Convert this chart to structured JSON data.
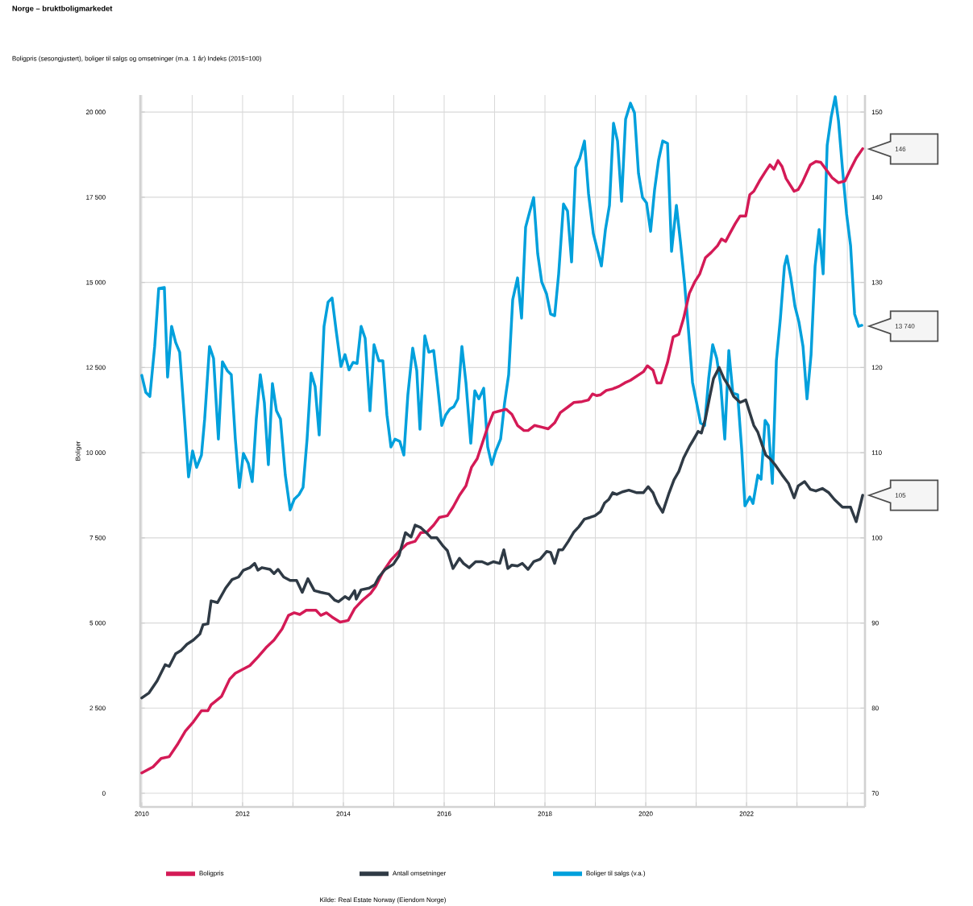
{
  "chart_data": {
    "type": "line",
    "title": "Norge – bruktboligmarkedet",
    "subtitle": "Boligpris (sesongjustert), boliger til salgs og omsetninger (m.a. 1 år) Indeks (2015=100)",
    "ylabel": "Boliger",
    "annotations": [
      "146",
      "13 740",
      "105",
      "Kilde: Real Estate Norway (Eiendom Norge)"
    ],
    "xlim": [
      2009.97,
      2024.35
    ],
    "xticks": [
      2010,
      {
        "value": 2011,
        "label": null
      },
      2012,
      {
        "value": 2013,
        "label": null
      },
      2014,
      {
        "value": 2015,
        "label": null
      },
      2016,
      {
        "value": 2017,
        "label": null
      },
      2018,
      {
        "value": 2019,
        "label": null
      },
      2020,
      {
        "value": 2021,
        "label": null
      },
      2022,
      {
        "value": 2023,
        "label": null
      },
      {
        "value": 2024,
        "label": null
      }
    ],
    "ylim": [
      -400,
      20500
    ],
    "yticks": [
      0,
      {
        "value": 2500,
        "label": "2 500"
      },
      {
        "value": 5000,
        "label": "5 000"
      },
      {
        "value": 7500,
        "label": "7 500"
      },
      {
        "value": 10000,
        "label": "10 000"
      },
      {
        "value": 12500,
        "label": "12 500"
      },
      {
        "value": 15000,
        "label": "15 000"
      },
      {
        "value": 17500,
        "label": "17 500"
      },
      {
        "value": 20000,
        "label": "20 000"
      }
    ],
    "y2lim": [
      68.4,
      152
    ],
    "y2ticks": [
      70,
      80,
      90,
      100,
      110,
      120,
      130,
      140,
      150
    ],
    "grid": true,
    "legend": "bottom",
    "series": [
      {
        "name": "Boligpris",
        "color": "#d41a56",
        "axis": "y2",
        "x": [
          2010.0,
          2010.224,
          2010.384,
          2010.544,
          2010.704,
          2010.864,
          2011.024,
          2011.184,
          2011.312,
          2011.376,
          2011.584,
          2011.744,
          2011.856,
          2011.984,
          2012.144,
          2012.304,
          2012.464,
          2012.624,
          2012.784,
          2012.912,
          2013.024,
          2013.136,
          2013.264,
          2013.456,
          2013.552,
          2013.664,
          2013.776,
          2013.936,
          2014.096,
          2014.224,
          2014.384,
          2014.544,
          2014.64,
          2014.784,
          2014.944,
          2015.104,
          2015.264,
          2015.424,
          2015.536,
          2015.664,
          2015.792,
          2015.904,
          2016.064,
          2016.176,
          2016.304,
          2016.432,
          2016.544,
          2016.656,
          2016.784,
          2016.864,
          2016.976,
          2017.104,
          2017.232,
          2017.344,
          2017.456,
          2017.584,
          2017.664,
          2017.792,
          2017.936,
          2018.064,
          2018.192,
          2018.304,
          2018.464,
          2018.576,
          2018.736,
          2018.864,
          2018.944,
          2019.024,
          2019.104,
          2019.216,
          2019.344,
          2019.472,
          2019.584,
          2019.696,
          2019.824,
          2019.952,
          2020.032,
          2020.144,
          2020.224,
          2020.304,
          2020.432,
          2020.544,
          2020.656,
          2020.752,
          2020.864,
          2020.976,
          2021.072,
          2021.184,
          2021.296,
          2021.424,
          2021.504,
          2021.584,
          2021.664,
          2021.776,
          2021.872,
          2021.984,
          2022.064,
          2022.144,
          2022.256,
          2022.384,
          2022.464,
          2022.544,
          2022.624,
          2022.704,
          2022.784,
          2022.944,
          2023.024,
          2023.104,
          2023.264,
          2023.376,
          2023.472,
          2023.584,
          2023.696,
          2023.824,
          2023.952,
          2024.064,
          2024.176,
          2024.304
        ],
        "values": [
          72.4,
          73.1,
          74.1,
          74.3,
          75.7,
          77.3,
          78.4,
          79.7,
          79.7,
          80.4,
          81.4,
          83.4,
          84.1,
          84.5,
          85.0,
          86.0,
          87.1,
          88.0,
          89.3,
          90.9,
          91.2,
          91.0,
          91.5,
          91.5,
          90.9,
          91.2,
          90.7,
          90.1,
          90.3,
          91.7,
          92.7,
          93.5,
          94.3,
          96.0,
          97.4,
          98.4,
          99.3,
          99.6,
          100.6,
          100.7,
          101.5,
          102.4,
          102.6,
          103.6,
          105.0,
          106.1,
          108.3,
          109.3,
          111.6,
          113.0,
          114.7,
          114.9,
          115.1,
          114.5,
          113.2,
          112.6,
          112.6,
          113.2,
          113.0,
          112.8,
          113.5,
          114.7,
          115.4,
          115.9,
          116.0,
          116.2,
          116.9,
          116.7,
          116.8,
          117.3,
          117.5,
          117.8,
          118.2,
          118.5,
          119.0,
          119.5,
          120.2,
          119.7,
          118.2,
          118.2,
          120.6,
          123.6,
          123.9,
          125.8,
          128.7,
          130.1,
          131.0,
          132.9,
          133.5,
          134.3,
          135.1,
          134.8,
          135.7,
          136.9,
          137.8,
          137.8,
          140.3,
          140.7,
          141.9,
          143.1,
          143.8,
          143.3,
          144.3,
          143.6,
          142.2,
          140.7,
          140.9,
          141.7,
          143.8,
          144.2,
          144.1,
          143.2,
          142.3,
          141.7,
          141.9,
          143.3,
          144.6,
          145.7
        ]
      },
      {
        "name": "Antall omsetninger",
        "color": "#2f3a45",
        "axis": "y2",
        "x": [
          2010.0,
          2010.144,
          2010.304,
          2010.464,
          2010.544,
          2010.672,
          2010.784,
          2010.896,
          2011.024,
          2011.152,
          2011.216,
          2011.312,
          2011.376,
          2011.504,
          2011.664,
          2011.792,
          2011.92,
          2012.016,
          2012.144,
          2012.24,
          2012.304,
          2012.384,
          2012.544,
          2012.624,
          2012.704,
          2012.816,
          2012.944,
          2013.072,
          2013.184,
          2013.296,
          2013.424,
          2013.552,
          2013.712,
          2013.824,
          2013.904,
          2014.032,
          2014.112,
          2014.224,
          2014.256,
          2014.352,
          2014.512,
          2014.624,
          2014.704,
          2014.832,
          2014.992,
          2015.104,
          2015.232,
          2015.344,
          2015.424,
          2015.536,
          2015.664,
          2015.744,
          2015.856,
          2015.984,
          2016.064,
          2016.176,
          2016.304,
          2016.384,
          2016.496,
          2016.624,
          2016.752,
          2016.864,
          2016.976,
          2017.104,
          2017.184,
          2017.264,
          2017.344,
          2017.456,
          2017.552,
          2017.664,
          2017.776,
          2017.904,
          2018.032,
          2018.112,
          2018.192,
          2018.272,
          2018.352,
          2018.464,
          2018.576,
          2018.672,
          2018.784,
          2018.896,
          2018.992,
          2019.104,
          2019.184,
          2019.264,
          2019.344,
          2019.424,
          2019.536,
          2019.664,
          2019.824,
          2019.952,
          2020.048,
          2020.144,
          2020.224,
          2020.336,
          2020.464,
          2020.56,
          2020.656,
          2020.752,
          2020.864,
          2020.944,
          2021.04,
          2021.104,
          2021.184,
          2021.264,
          2021.344,
          2021.456,
          2021.552,
          2021.648,
          2021.744,
          2021.872,
          2021.984,
          2022.064,
          2022.144,
          2022.224,
          2022.304,
          2022.384,
          2022.464,
          2022.576,
          2022.704,
          2022.832,
          2022.944,
          2023.024,
          2023.152,
          2023.264,
          2023.376,
          2023.504,
          2023.632,
          2023.744,
          2023.904,
          2024.064,
          2024.176,
          2024.304
        ],
        "values": [
          81.2,
          81.8,
          83.2,
          85.1,
          84.9,
          86.4,
          86.8,
          87.5,
          88.0,
          88.7,
          89.8,
          89.9,
          92.6,
          92.4,
          94.1,
          95.1,
          95.4,
          96.2,
          96.5,
          97.0,
          96.2,
          96.5,
          96.3,
          95.8,
          96.3,
          95.4,
          95.0,
          95.0,
          93.6,
          95.2,
          93.8,
          93.6,
          93.4,
          92.7,
          92.5,
          93.1,
          92.8,
          93.8,
          92.8,
          93.9,
          94.1,
          94.5,
          95.4,
          96.3,
          96.9,
          97.9,
          100.6,
          100.1,
          101.5,
          101.2,
          100.5,
          100.0,
          100.0,
          99.0,
          98.5,
          96.4,
          97.6,
          97.0,
          96.5,
          97.2,
          97.2,
          96.9,
          97.2,
          97.0,
          98.6,
          96.4,
          96.8,
          96.7,
          97.0,
          96.3,
          97.2,
          97.5,
          98.4,
          98.3,
          97.0,
          98.6,
          98.6,
          99.6,
          100.7,
          101.3,
          102.2,
          102.4,
          102.6,
          103.1,
          104.1,
          104.5,
          105.3,
          105.1,
          105.4,
          105.6,
          105.3,
          105.3,
          106.0,
          105.3,
          104.1,
          103.0,
          105.3,
          106.8,
          107.8,
          109.4,
          110.7,
          111.5,
          112.5,
          112.3,
          114.0,
          116.4,
          118.7,
          120.0,
          118.7,
          117.8,
          116.6,
          115.9,
          116.2,
          114.7,
          113.2,
          112.4,
          111.0,
          109.7,
          109.3,
          108.5,
          107.4,
          106.4,
          104.7,
          106.1,
          106.6,
          105.7,
          105.5,
          105.8,
          105.3,
          104.5,
          103.6,
          103.6,
          101.9,
          105.0
        ]
      },
      {
        "name": "Boliger til salgs (v.a.)",
        "color": "#00a0dc",
        "x": [
          2010.0,
          2010.08,
          2010.16,
          2010.256,
          2010.336,
          2010.448,
          2010.512,
          2010.592,
          2010.672,
          2010.752,
          2010.848,
          2010.928,
          2011.008,
          2011.088,
          2011.184,
          2011.248,
          2011.344,
          2011.424,
          2011.52,
          2011.6,
          2011.696,
          2011.776,
          2011.856,
          2011.936,
          2012.016,
          2012.112,
          2012.192,
          2012.272,
          2012.352,
          2012.432,
          2012.512,
          2012.592,
          2012.672,
          2012.752,
          2012.848,
          2012.944,
          2013.024,
          2013.12,
          2013.2,
          2013.28,
          2013.36,
          2013.44,
          2013.52,
          2013.616,
          2013.696,
          2013.776,
          2013.856,
          2013.952,
          2014.032,
          2014.112,
          2014.192,
          2014.272,
          2014.352,
          2014.432,
          2014.528,
          2014.608,
          2014.704,
          2014.784,
          2014.864,
          2014.944,
          2015.024,
          2015.12,
          2015.2,
          2015.28,
          2015.376,
          2015.456,
          2015.52,
          2015.616,
          2015.696,
          2015.792,
          2015.872,
          2015.952,
          2016.032,
          2016.112,
          2016.192,
          2016.272,
          2016.352,
          2016.432,
          2016.528,
          2016.608,
          2016.688,
          2016.784,
          2016.864,
          2016.944,
          2017.024,
          2017.12,
          2017.2,
          2017.28,
          2017.36,
          2017.456,
          2017.536,
          2017.616,
          2017.696,
          2017.776,
          2017.856,
          2017.936,
          2018.032,
          2018.112,
          2018.192,
          2018.272,
          2018.368,
          2018.448,
          2018.528,
          2018.608,
          2018.688,
          2018.784,
          2018.864,
          2018.96,
          2019.04,
          2019.12,
          2019.2,
          2019.28,
          2019.36,
          2019.44,
          2019.52,
          2019.6,
          2019.696,
          2019.776,
          2019.856,
          2019.936,
          2020.016,
          2020.096,
          2020.176,
          2020.256,
          2020.336,
          2020.432,
          2020.512,
          2020.608,
          2020.688,
          2020.768,
          2020.848,
          2020.928,
          2021.008,
          2021.088,
          2021.168,
          2021.248,
          2021.328,
          2021.408,
          2021.488,
          2021.568,
          2021.648,
          2021.728,
          2021.824,
          2021.904,
          2021.968,
          2022.064,
          2022.128,
          2022.224,
          2022.288,
          2022.368,
          2022.432,
          2022.512,
          2022.592,
          2022.672,
          2022.752,
          2022.8,
          2022.88,
          2022.96,
          2023.04,
          2023.12,
          2023.2,
          2023.28,
          2023.36,
          2023.44,
          2023.52,
          2023.6,
          2023.68,
          2023.76,
          2023.824,
          2023.904,
          2023.984,
          2024.064,
          2024.144,
          2024.224,
          2024.288
        ],
        "values": [
          12270,
          11770,
          11650,
          13120,
          14820,
          14850,
          12220,
          13710,
          13240,
          12950,
          10990,
          9290,
          10050,
          9570,
          9930,
          10990,
          13120,
          12770,
          10400,
          12670,
          12410,
          12290,
          10400,
          8980,
          9980,
          9690,
          9150,
          10990,
          12290,
          11470,
          9650,
          12030,
          11230,
          10990,
          9340,
          8320,
          8630,
          8770,
          8980,
          10400,
          12340,
          11940,
          10520,
          13710,
          14420,
          14540,
          13590,
          12530,
          12880,
          12430,
          12650,
          12620,
          13710,
          13360,
          11230,
          13170,
          12700,
          12700,
          11110,
          10170,
          10400,
          10330,
          9930,
          11700,
          13070,
          12410,
          10690,
          13430,
          12950,
          13000,
          11940,
          10800,
          11110,
          11280,
          11350,
          11580,
          13120,
          12060,
          10280,
          11820,
          11580,
          11890,
          10170,
          9650,
          10050,
          10400,
          11470,
          12290,
          14490,
          15130,
          13950,
          16620,
          17070,
          17490,
          15840,
          15010,
          14660,
          14070,
          14020,
          15250,
          17300,
          17090,
          15600,
          18370,
          18630,
          19150,
          17610,
          16430,
          15960,
          15480,
          16550,
          17260,
          19670,
          19150,
          17380,
          19790,
          20260,
          19980,
          18200,
          17490,
          17330,
          16500,
          17730,
          18600,
          19150,
          19080,
          15910,
          17260,
          16190,
          15010,
          13590,
          12060,
          11470,
          10870,
          10800,
          12170,
          13170,
          12770,
          11990,
          10400,
          13000,
          11750,
          11700,
          10090,
          8440,
          8700,
          8510,
          9340,
          9220,
          10950,
          10800,
          9100,
          12700,
          13950,
          15480,
          15770,
          15130,
          14300,
          13830,
          13120,
          11580,
          12880,
          15480,
          16550,
          15250,
          19030,
          19860,
          20450,
          19740,
          18320,
          17020,
          16080,
          14070,
          13710,
          13740
        ]
      }
    ]
  }
}
